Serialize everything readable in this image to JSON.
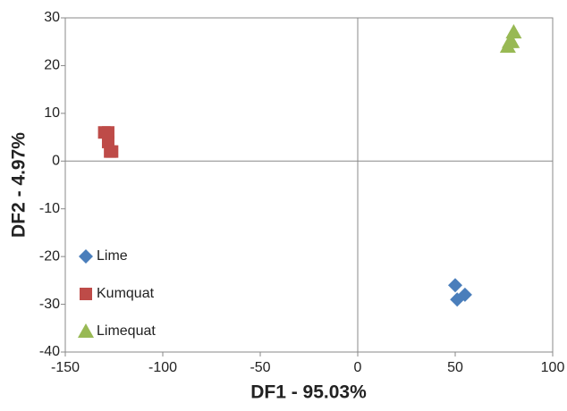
{
  "chart_data": {
    "type": "scatter",
    "x_label": "DF1 - 95.03%",
    "y_label": "DF2 - 4.97%",
    "xlim": [
      -150,
      100
    ],
    "xticks": [
      -150,
      -100,
      -50,
      0,
      50,
      100
    ],
    "ylim": [
      -40,
      30
    ],
    "yticks": [
      -40,
      -30,
      -20,
      -10,
      0,
      10,
      20,
      30
    ],
    "legend": "lower left",
    "series": [
      {
        "name": "Lime",
        "color": "#4a7ebb",
        "marker": "diamond",
        "x": [
          50,
          51,
          55
        ],
        "values": [
          -26,
          -29,
          -28
        ]
      },
      {
        "name": "Kumquat",
        "color": "#be4b48",
        "marker": "square",
        "x": [
          -130,
          -128,
          -128,
          -127,
          -126
        ],
        "values": [
          6,
          6,
          4,
          2,
          2
        ]
      },
      {
        "name": "Limequat",
        "color": "#98b954",
        "marker": "triangle",
        "x": [
          80,
          77,
          78,
          79
        ],
        "values": [
          27,
          24,
          25,
          25
        ]
      }
    ]
  }
}
